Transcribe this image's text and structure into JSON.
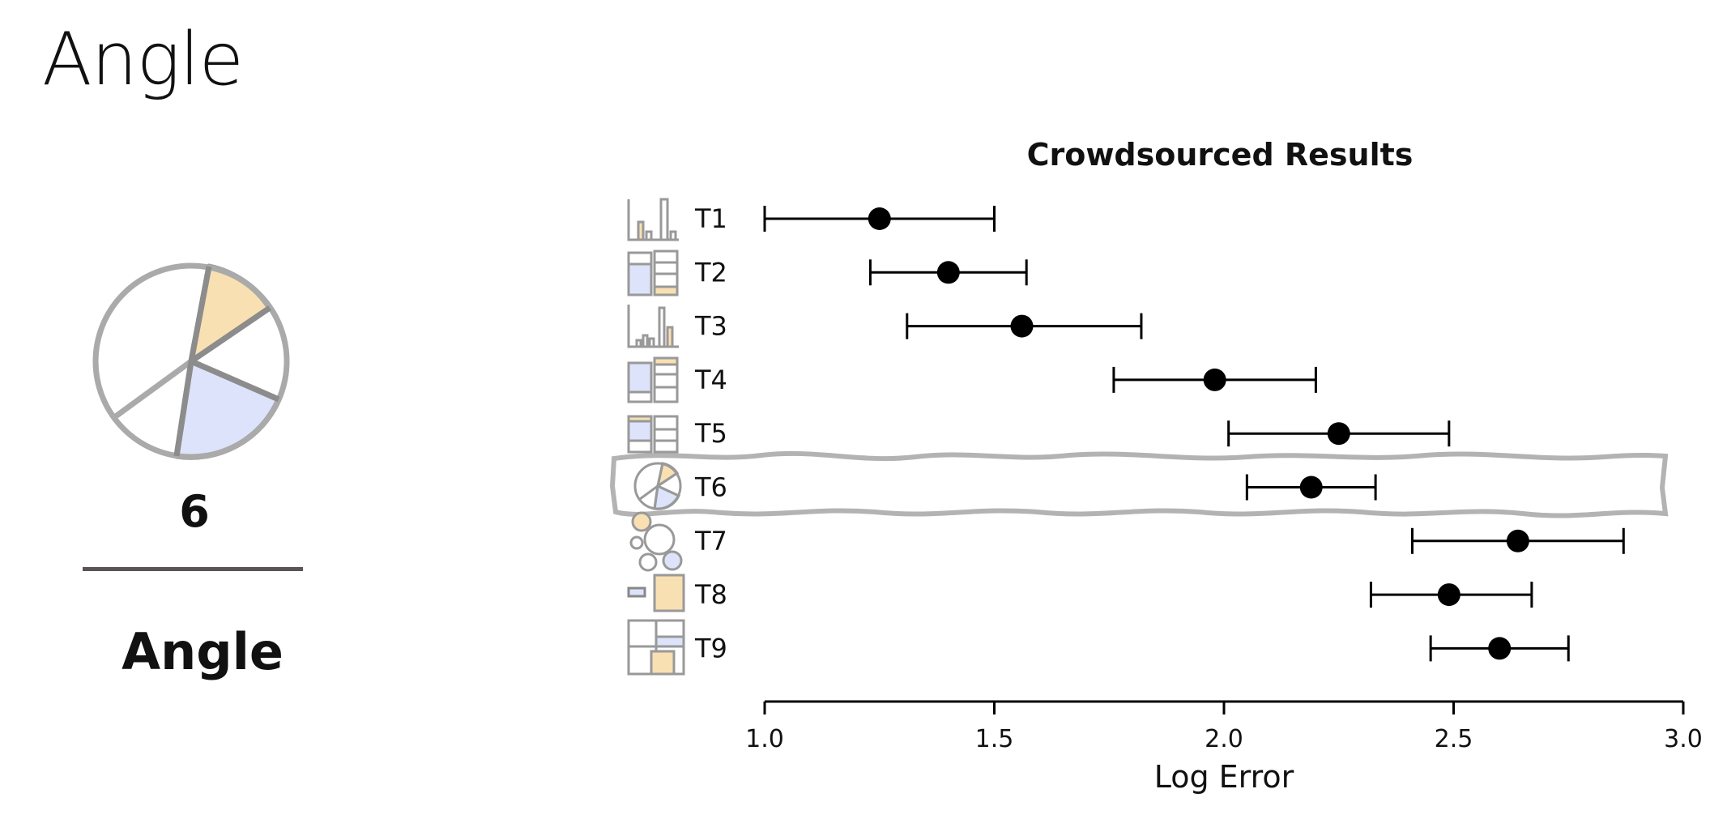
{
  "slide": {
    "title": "Angle",
    "rank_number": "6",
    "channel_label": "Angle"
  },
  "colors": {
    "orange_fill": "#f9e0b2",
    "blue_fill": "#dde3fa",
    "icon_stroke": "#999999",
    "axis": "#000000",
    "highlight_stroke": "#b3b3b3"
  },
  "chart_data": {
    "type": "dot_errorbar",
    "title": "Crowdsourced Results",
    "xlabel": "Log Error",
    "xlim": [
      1.0,
      3.0
    ],
    "xticks": [
      "1.0",
      "1.5",
      "2.0",
      "2.5",
      "3.0"
    ],
    "highlighted": "T6",
    "tasks": [
      {
        "label": "T1",
        "mean": 1.25,
        "low": 1.0,
        "high": 1.5
      },
      {
        "label": "T2",
        "mean": 1.4,
        "low": 1.23,
        "high": 1.57
      },
      {
        "label": "T3",
        "mean": 1.56,
        "low": 1.31,
        "high": 1.82
      },
      {
        "label": "T4",
        "mean": 1.98,
        "low": 1.76,
        "high": 2.2
      },
      {
        "label": "T5",
        "mean": 2.25,
        "low": 2.01,
        "high": 2.49
      },
      {
        "label": "T6",
        "mean": 2.19,
        "low": 2.05,
        "high": 2.33
      },
      {
        "label": "T7",
        "mean": 2.64,
        "low": 2.41,
        "high": 2.87
      },
      {
        "label": "T8",
        "mean": 2.49,
        "low": 2.32,
        "high": 2.67
      },
      {
        "label": "T9",
        "mean": 2.6,
        "low": 2.45,
        "high": 2.75
      }
    ]
  }
}
